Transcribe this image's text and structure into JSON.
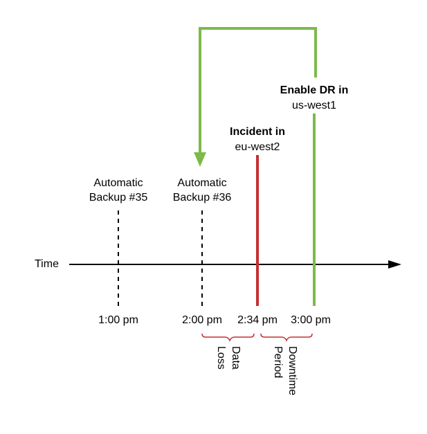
{
  "timeline": {
    "axis_label": "Time",
    "times": [
      "1:00 pm",
      "2:00 pm",
      "2:34 pm",
      "3:00 pm"
    ]
  },
  "backups": [
    {
      "line1": "Automatic",
      "line2": "Backup #35"
    },
    {
      "line1": "Automatic",
      "line2": "Backup #36"
    }
  ],
  "incident": {
    "title": "Incident in",
    "region": "eu-west2",
    "color": "#c62f2f"
  },
  "dr": {
    "title": "Enable DR in",
    "region": "us-west1",
    "color": "#7cba4a"
  },
  "periods": {
    "data_loss": {
      "line1": "Data",
      "line2": "Loss"
    },
    "downtime": {
      "line1": "Downtime",
      "line2": "Period"
    },
    "brace_color": "#c62f2f"
  }
}
